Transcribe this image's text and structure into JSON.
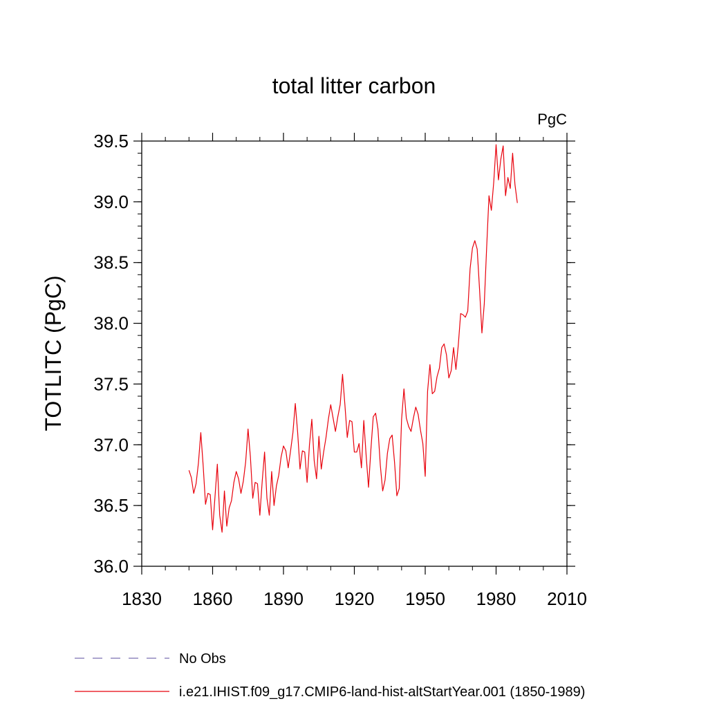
{
  "chart_data": {
    "type": "line",
    "title": "total litter carbon",
    "units": "PgC",
    "xlabel": "",
    "ylabel": "TOTLITC  (PgC)",
    "xlim": [
      1830,
      2010
    ],
    "ylim": [
      36.0,
      39.5
    ],
    "x_ticks": [
      "1830",
      "1860",
      "1890",
      "1920",
      "1950",
      "1980",
      "2010"
    ],
    "y_ticks": [
      "36.0",
      "36.5",
      "37.0",
      "37.5",
      "38.0",
      "38.5",
      "39.0",
      "39.5"
    ],
    "grid": false,
    "legend_position": "bottom",
    "legend": [
      {
        "label": "No Obs",
        "color": "#7a6fb0",
        "style": "dashed"
      },
      {
        "label": "i.e21.IHIST.f09_g17.CMIP6-land-hist-altStartYear.001 (1850-1989)",
        "color": "#e8000b",
        "style": "solid"
      }
    ],
    "series": [
      {
        "name": "i.e21.IHIST.f09_g17.CMIP6-land-hist-altStartYear.001 (1850-1989)",
        "color": "#e8000b",
        "x": [
          1850,
          1851,
          1852,
          1853,
          1854,
          1855,
          1856,
          1857,
          1858,
          1859,
          1860,
          1861,
          1862,
          1863,
          1864,
          1865,
          1866,
          1867,
          1868,
          1869,
          1870,
          1871,
          1872,
          1873,
          1874,
          1875,
          1876,
          1877,
          1878,
          1879,
          1880,
          1881,
          1882,
          1883,
          1884,
          1885,
          1886,
          1887,
          1888,
          1889,
          1890,
          1891,
          1892,
          1893,
          1894,
          1895,
          1896,
          1897,
          1898,
          1899,
          1900,
          1901,
          1902,
          1903,
          1904,
          1905,
          1906,
          1907,
          1908,
          1909,
          1910,
          1911,
          1912,
          1913,
          1914,
          1915,
          1916,
          1917,
          1918,
          1919,
          1920,
          1921,
          1922,
          1923,
          1924,
          1925,
          1926,
          1927,
          1928,
          1929,
          1930,
          1931,
          1932,
          1933,
          1934,
          1935,
          1936,
          1937,
          1938,
          1939,
          1940,
          1941,
          1942,
          1943,
          1944,
          1945,
          1946,
          1947,
          1948,
          1949,
          1950,
          1951,
          1952,
          1953,
          1954,
          1955,
          1956,
          1957,
          1958,
          1959,
          1960,
          1961,
          1962,
          1963,
          1964,
          1965,
          1966,
          1967,
          1968,
          1969,
          1970,
          1971,
          1972,
          1973,
          1974,
          1975,
          1976,
          1977,
          1978,
          1979,
          1980,
          1981,
          1982,
          1983,
          1984,
          1985,
          1986,
          1987,
          1988,
          1989
        ],
        "values": [
          36.79,
          36.73,
          36.6,
          36.68,
          36.85,
          37.1,
          36.83,
          36.51,
          36.6,
          36.59,
          36.3,
          36.57,
          36.84,
          36.42,
          36.28,
          36.62,
          36.33,
          36.48,
          36.54,
          36.69,
          36.78,
          36.72,
          36.6,
          36.7,
          36.86,
          37.13,
          36.9,
          36.56,
          36.69,
          36.68,
          36.42,
          36.7,
          36.94,
          36.56,
          36.42,
          36.78,
          36.5,
          36.66,
          36.75,
          36.9,
          36.99,
          36.95,
          36.81,
          36.95,
          37.1,
          37.34,
          37.1,
          36.8,
          36.95,
          36.94,
          36.69,
          37.0,
          37.21,
          36.87,
          36.72,
          37.07,
          36.8,
          36.94,
          37.06,
          37.21,
          37.33,
          37.22,
          37.11,
          37.23,
          37.33,
          37.58,
          37.33,
          37.06,
          37.2,
          37.19,
          36.94,
          36.94,
          37.01,
          36.81,
          37.2,
          36.91,
          36.65,
          36.96,
          37.23,
          37.26,
          37.13,
          36.83,
          36.62,
          36.71,
          36.93,
          37.05,
          37.08,
          36.86,
          36.58,
          36.64,
          37.21,
          37.46,
          37.22,
          37.15,
          37.11,
          37.22,
          37.31,
          37.25,
          37.12,
          37.01,
          36.74,
          37.44,
          37.66,
          37.42,
          37.44,
          37.56,
          37.63,
          37.8,
          37.83,
          37.74,
          37.55,
          37.61,
          37.8,
          37.62,
          37.82,
          38.08,
          38.07,
          38.05,
          38.1,
          38.45,
          38.62,
          38.68,
          38.61,
          38.28,
          37.92,
          38.16,
          38.62,
          39.05,
          38.93,
          39.16,
          39.47,
          39.18,
          39.35,
          39.46,
          39.05,
          39.2,
          39.11,
          39.4,
          39.14,
          38.99
        ]
      }
    ]
  }
}
